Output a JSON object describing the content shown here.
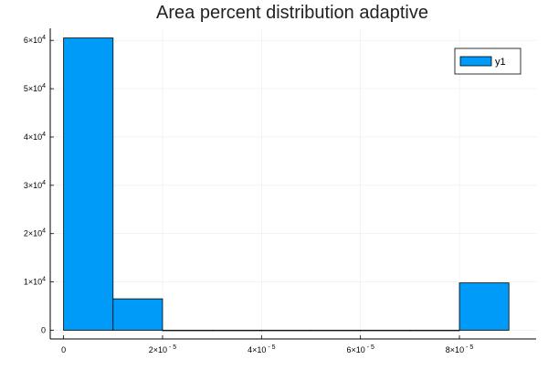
{
  "chart_data": {
    "type": "bar",
    "title": "Area percent distribution adaptive",
    "xlabel": "",
    "ylabel": "",
    "bins": [
      {
        "x0": 0,
        "x1": 1e-05,
        "count": 60500
      },
      {
        "x0": 1e-05,
        "x1": 2e-05,
        "count": 6500
      },
      {
        "x0": 2e-05,
        "x1": 3e-05,
        "count": 0
      },
      {
        "x0": 3e-05,
        "x1": 4e-05,
        "count": 0
      },
      {
        "x0": 4e-05,
        "x1": 5e-05,
        "count": 0
      },
      {
        "x0": 5e-05,
        "x1": 6e-05,
        "count": 0
      },
      {
        "x0": 6e-05,
        "x1": 7e-05,
        "count": 0
      },
      {
        "x0": 7e-05,
        "x1": 8e-05,
        "count": 0
      },
      {
        "x0": 8e-05,
        "x1": 9e-05,
        "count": 9800
      }
    ],
    "series": [
      {
        "name": "y1",
        "color": "#009AF9"
      }
    ],
    "xlim": [
      -2.7e-06,
      9.55e-05
    ],
    "ylim": [
      -1800,
      62500
    ],
    "x_ticks": [
      {
        "value": 0,
        "mantissa": "0",
        "exponent": ""
      },
      {
        "value": 2e-05,
        "mantissa": "2×10",
        "exponent": "- 5"
      },
      {
        "value": 4e-05,
        "mantissa": "4×10",
        "exponent": "- 5"
      },
      {
        "value": 6e-05,
        "mantissa": "6×10",
        "exponent": "- 5"
      },
      {
        "value": 8e-05,
        "mantissa": "8×10",
        "exponent": "- 5"
      }
    ],
    "y_ticks": [
      {
        "value": 0,
        "mantissa": "0",
        "exponent": ""
      },
      {
        "value": 10000,
        "mantissa": "1×10",
        "exponent": "4"
      },
      {
        "value": 20000,
        "mantissa": "2×10",
        "exponent": "4"
      },
      {
        "value": 30000,
        "mantissa": "3×10",
        "exponent": "4"
      },
      {
        "value": 40000,
        "mantissa": "4×10",
        "exponent": "4"
      },
      {
        "value": 50000,
        "mantissa": "5×10",
        "exponent": "4"
      },
      {
        "value": 60000,
        "mantissa": "6×10",
        "exponent": "4"
      }
    ],
    "grid": true,
    "legend_position": "top-right"
  }
}
